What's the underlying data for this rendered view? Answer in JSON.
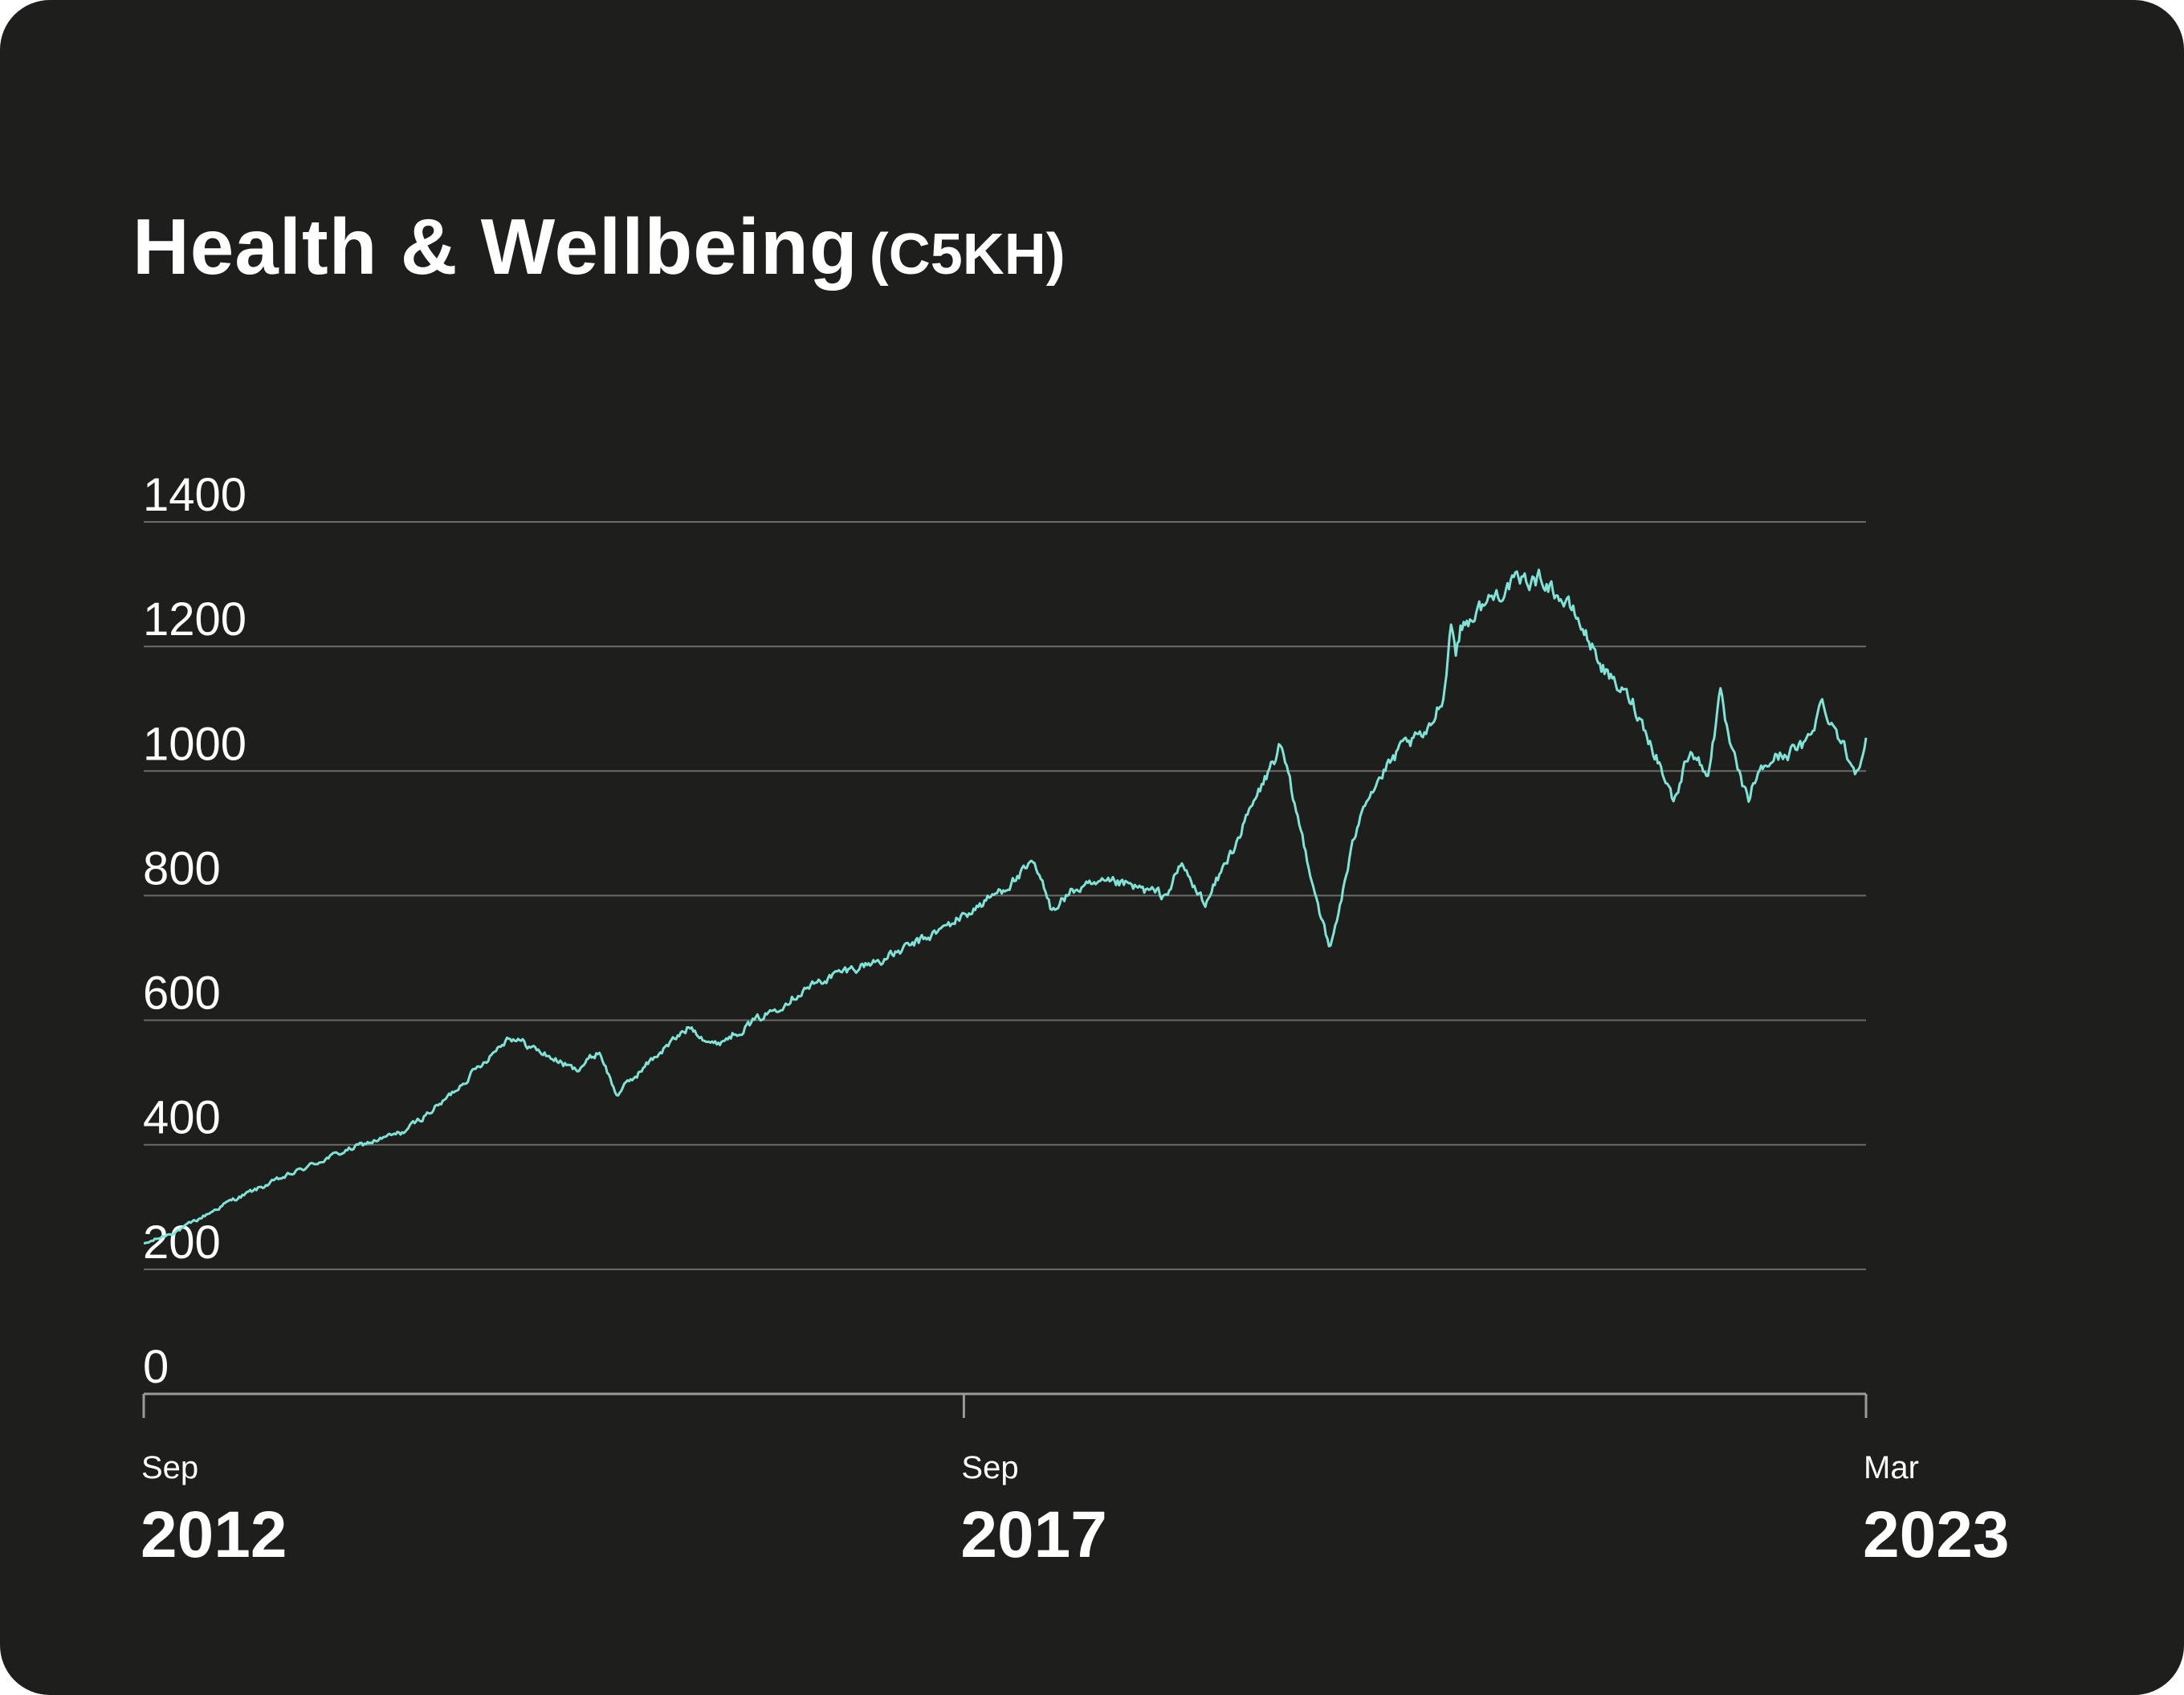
{
  "header": {
    "title": "Health & Wellbeing",
    "code": "(C5KH)"
  },
  "colors": {
    "background": "#1e1e1d",
    "line": "#7fe3d6",
    "grid": "#6a6a68",
    "text": "#ffffff"
  },
  "chart_data": {
    "type": "line",
    "title": "Health & Wellbeing (C5KH)",
    "xlabel": "",
    "ylabel": "",
    "ylim": [
      0,
      1400
    ],
    "yticks": [
      0,
      200,
      400,
      600,
      800,
      1000,
      1200,
      1400
    ],
    "xlim": [
      2012.67,
      2023.17
    ],
    "xticks": [
      {
        "value": 2012.67,
        "month": "Sep",
        "year": "2012"
      },
      {
        "value": 2017.67,
        "month": "Sep",
        "year": "2017"
      },
      {
        "value": 2023.17,
        "month": "Mar",
        "year": "2023"
      }
    ],
    "grid": true,
    "legend": "none",
    "series": [
      {
        "name": "Health & Wellbeing (C5KH)",
        "x": [
          2012.67,
          2012.9,
          2013.2,
          2013.5,
          2013.8,
          2014.0,
          2014.25,
          2014.5,
          2014.9,
          2015.3,
          2015.45,
          2015.55,
          2015.8,
          2016.0,
          2016.15,
          2016.5,
          2016.7,
          2016.9,
          2017.2,
          2017.5,
          2017.8,
          2018.1,
          2018.2,
          2018.35,
          2018.6,
          2018.9,
          2019.0,
          2019.1,
          2019.15,
          2019.3,
          2019.6,
          2019.9,
          2020.1,
          2020.35,
          2020.5,
          2020.6,
          2020.64,
          2020.67,
          2020.7,
          2020.85,
          2021.0,
          2021.2,
          2021.4,
          2021.6,
          2021.75,
          2021.9,
          2022.0,
          2022.1,
          2022.2,
          2022.28,
          2022.35,
          2022.45,
          2022.5,
          2022.6,
          2022.7,
          2022.8,
          2022.9,
          2023.0,
          2023.1,
          2023.17
        ],
        "values": [
          240,
          265,
          310,
          345,
          380,
          400,
          420,
          470,
          575,
          520,
          550,
          480,
          545,
          590,
          560,
          615,
          650,
          675,
          700,
          740,
          790,
          850,
          780,
          810,
          820,
          800,
          850,
          800,
          790,
          870,
          1040,
          710,
          950,
          1040,
          1060,
          1130,
          1240,
          1195,
          1230,
          1270,
          1300,
          1310,
          1250,
          1150,
          1110,
          1020,
          950,
          1040,
          990,
          1120,
          1030,
          950,
          990,
          1020,
          1030,
          1040,
          1110,
          1060,
          1000,
          1050
        ]
      }
    ]
  }
}
